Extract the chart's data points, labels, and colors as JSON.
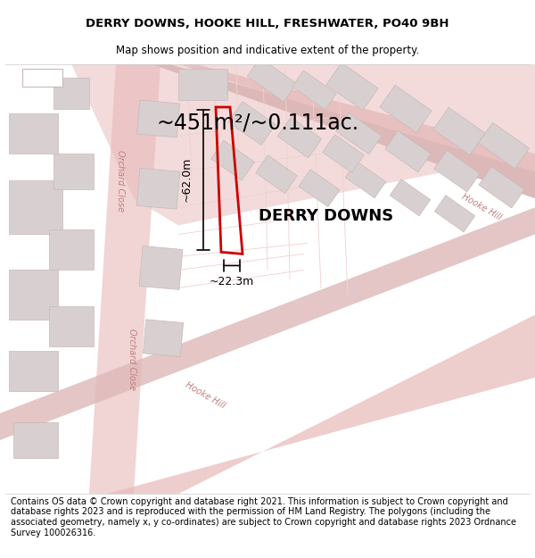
{
  "title_line1": "DERRY DOWNS, HOOKE HILL, FRESHWATER, PO40 9BH",
  "title_line2": "Map shows position and indicative extent of the property.",
  "area_label": "~451m²/~0.111ac.",
  "property_name": "DERRY DOWNS",
  "dim_height": "~62.0m",
  "dim_width": "~22.3m",
  "street_label1": "Hooke Hill",
  "street_label2": "Hooke Hill",
  "street_label3": "Orchard Close",
  "street_label4": "Orchard Close",
  "footer_text": "Contains OS data © Crown copyright and database right 2021. This information is subject to Crown copyright and database rights 2023 and is reproduced with the permission of HM Land Registry. The polygons (including the associated geometry, namely x, y co-ordinates) are subject to Crown copyright and database rights 2023 Ordnance Survey 100026316.",
  "bg_color": "#ffffff",
  "map_bg_color": "#f8f0f0",
  "road_color": "#e8b8b8",
  "building_fill": "#d8d0d0",
  "building_edge": "#c8b8b8",
  "property_outline_color": "#cc0000",
  "dim_line_color": "#000000",
  "text_color": "#000000",
  "faint_road_color": "#f0d0d0",
  "title_fontsize": 9.5,
  "subtitle_fontsize": 8.5,
  "area_fontsize": 18,
  "property_name_fontsize": 14,
  "dim_fontsize": 9,
  "street_fontsize": 7,
  "footer_fontsize": 7
}
